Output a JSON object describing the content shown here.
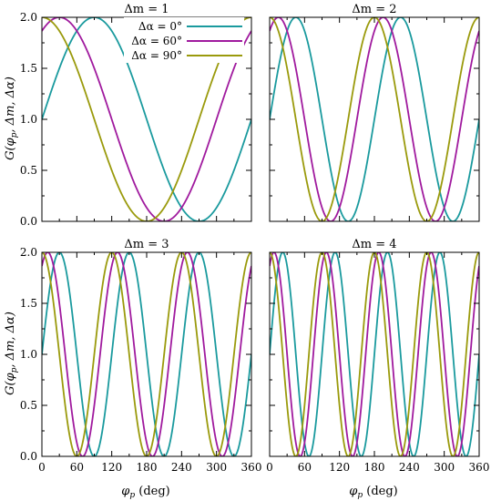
{
  "figure": {
    "ylabel": "G(φp, Δm, Δα)",
    "xlabel": "φp (deg)"
  },
  "legend": {
    "entries": [
      "Δα = 0°",
      "Δα = 60°",
      "Δα = 90°"
    ]
  },
  "colors": {
    "alpha0": "#1a9a9e",
    "alpha60": "#a01a9e",
    "alpha90": "#9a9a0c"
  },
  "chart_data": [
    {
      "type": "line",
      "title": "Δm = 1",
      "xlim": [
        0,
        360
      ],
      "ylim": [
        0,
        2
      ],
      "xticks": [
        0,
        60,
        120,
        180,
        240,
        300,
        360
      ],
      "yticks": [
        0.0,
        0.5,
        1.0,
        1.5,
        2.0
      ],
      "ytick_labels": [
        "0.0",
        "0.5",
        "1.0",
        "1.5",
        "2.0"
      ],
      "formula": "G = 1 + sin(Δm·φp + Δα)",
      "delta_m": 1,
      "series": [
        {
          "name": "Δα = 0°",
          "delta_alpha": 0
        },
        {
          "name": "Δα = 60°",
          "delta_alpha": 60
        },
        {
          "name": "Δα = 90°",
          "delta_alpha": 90
        }
      ]
    },
    {
      "type": "line",
      "title": "Δm = 2",
      "xlim": [
        0,
        360
      ],
      "ylim": [
        0,
        2
      ],
      "delta_m": 2,
      "series": [
        {
          "name": "Δα = 0°",
          "delta_alpha": 0
        },
        {
          "name": "Δα = 60°",
          "delta_alpha": 60
        },
        {
          "name": "Δα = 90°",
          "delta_alpha": 90
        }
      ]
    },
    {
      "type": "line",
      "title": "Δm = 3",
      "xlim": [
        0,
        360
      ],
      "ylim": [
        0,
        2
      ],
      "xticks": [
        0,
        60,
        120,
        180,
        240,
        300,
        360
      ],
      "yticks": [
        0.0,
        0.5,
        1.0,
        1.5,
        2.0
      ],
      "ytick_labels": [
        "0.0",
        "0.5",
        "1.0",
        "1.5",
        "2.0"
      ],
      "delta_m": 3,
      "series": [
        {
          "name": "Δα = 0°",
          "delta_alpha": 0
        },
        {
          "name": "Δα = 60°",
          "delta_alpha": 60
        },
        {
          "name": "Δα = 90°",
          "delta_alpha": 90
        }
      ]
    },
    {
      "type": "line",
      "title": "Δm = 4",
      "xlim": [
        0,
        360
      ],
      "ylim": [
        0,
        2
      ],
      "xticks": [
        0,
        60,
        120,
        180,
        240,
        300,
        360
      ],
      "delta_m": 4,
      "series": [
        {
          "name": "Δα = 0°",
          "delta_alpha": 0
        },
        {
          "name": "Δα = 60°",
          "delta_alpha": 60
        },
        {
          "name": "Δα = 90°",
          "delta_alpha": 90
        }
      ]
    }
  ]
}
